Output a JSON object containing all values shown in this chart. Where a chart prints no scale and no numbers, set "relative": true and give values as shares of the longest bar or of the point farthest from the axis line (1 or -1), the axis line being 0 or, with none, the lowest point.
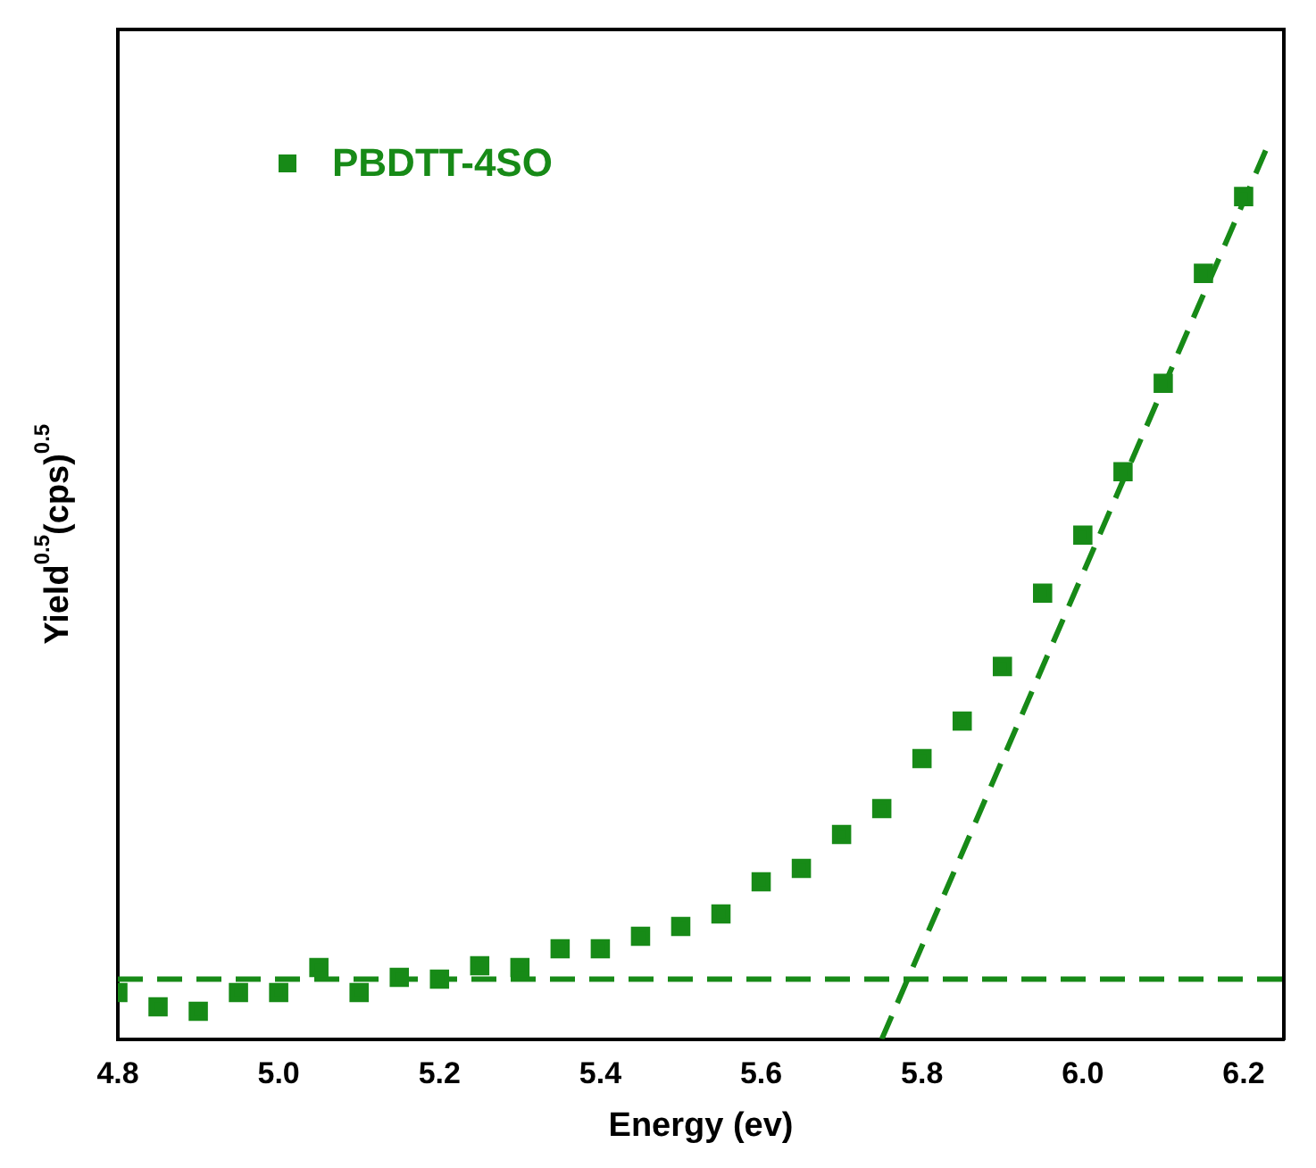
{
  "chart_data": {
    "type": "scatter",
    "relative": true,
    "xlabel": "Energy (ev)",
    "ylabel": "Yield$^{0.5}$(cps)$^{0.5}$",
    "xlim": [
      4.8,
      6.25
    ],
    "xticks": [
      4.8,
      {
        "value": 5,
        "label": "5.0"
      },
      5.2,
      5.4,
      5.6,
      5.8,
      {
        "value": 6,
        "label": "6.0"
      },
      6.2
    ],
    "grid": false,
    "legend": "top left",
    "tick_labels": "x",
    "series": [
      {
        "name": "PBDTT-4SO",
        "type": "scatter",
        "marker": "square",
        "color": "#178a17",
        "x": [
          4.8,
          4.85,
          4.9,
          4.95,
          5.0,
          5.05,
          5.1,
          5.15,
          5.2,
          5.25,
          5.3,
          5.35,
          5.4,
          5.45,
          5.5,
          5.55,
          5.6,
          5.65,
          5.7,
          5.75,
          5.8,
          5.85,
          5.9,
          5.95,
          6.0,
          6.05,
          6.1,
          6.15,
          6.2
        ],
        "values": [
          0.052,
          0.036,
          0.031,
          0.052,
          0.052,
          0.08,
          0.052,
          0.069,
          0.067,
          0.082,
          0.08,
          0.101,
          0.101,
          0.115,
          0.126,
          0.14,
          0.176,
          0.191,
          0.229,
          0.258,
          0.314,
          0.356,
          0.417,
          0.499,
          0.564,
          0.635,
          0.734,
          0.857,
          0.943
        ]
      },
      {
        "type": "line",
        "marker": "none",
        "line_style": "dashed",
        "color": "#178a17",
        "x": [
          4.8,
          6.25
        ],
        "values": [
          0.067,
          0.067
        ]
      },
      {
        "type": "line",
        "marker": "none",
        "line_style": "dashed",
        "color": "#178a17",
        "x": [
          5.75,
          6.23
        ],
        "values": [
          0,
          1
        ]
      }
    ]
  }
}
